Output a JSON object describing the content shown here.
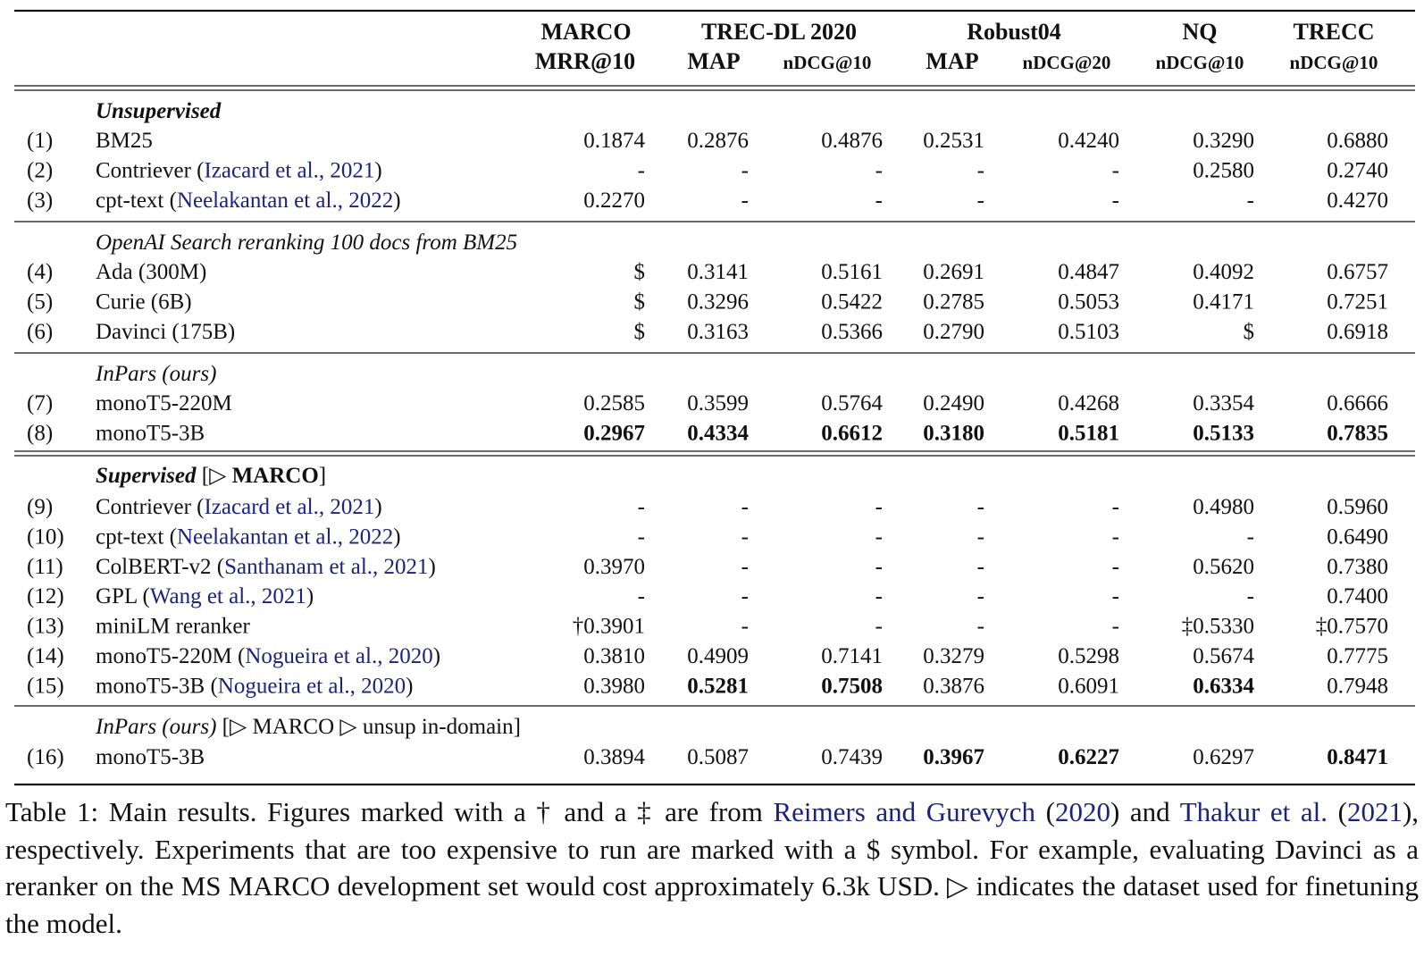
{
  "table": {
    "header_groups": [
      "MARCO",
      "TREC-DL 2020",
      "Robust04",
      "NQ",
      "TRECC"
    ],
    "metrics": [
      "MRR@10",
      "MAP",
      "nDCG@10",
      "MAP",
      "nDCG@20",
      "nDCG@10",
      "nDCG@10"
    ],
    "sections": [
      {
        "title": [
          {
            "t": "Unsupervised",
            "s": "bi"
          }
        ],
        "rows": [
          {
            "num": "(1)",
            "name": "BM25",
            "cite": "",
            "year": "",
            "values": [
              "0.1874",
              "0.2876",
              "0.4876",
              "0.2531",
              "0.4240",
              "0.3290",
              "0.6880"
            ],
            "bold": []
          },
          {
            "num": "(2)",
            "name": "Contriever (",
            "cite": "Izacard et al., 2021",
            "year": "",
            "close": ")",
            "values": [
              "-",
              "-",
              "-",
              "-",
              "-",
              "0.2580",
              "0.2740"
            ],
            "bold": []
          },
          {
            "num": "(3)",
            "name": "cpt-text (",
            "cite": "Neelakantan et al., 2022",
            "year": "",
            "close": ")",
            "values": [
              "0.2270",
              "-",
              "-",
              "-",
              "-",
              "-",
              "0.4270"
            ],
            "bold": []
          }
        ]
      },
      {
        "title": [
          {
            "t": "OpenAI Search reranking 100 docs from BM25",
            "s": "i"
          }
        ],
        "rows": [
          {
            "num": "(4)",
            "name": "Ada (300M)",
            "cite": "",
            "values": [
              "$",
              "0.3141",
              "0.5161",
              "0.2691",
              "0.4847",
              "0.4092",
              "0.6757"
            ],
            "bold": []
          },
          {
            "num": "(5)",
            "name": "Curie (6B)",
            "cite": "",
            "values": [
              "$",
              "0.3296",
              "0.5422",
              "0.2785",
              "0.5053",
              "0.4171",
              "0.7251"
            ],
            "bold": []
          },
          {
            "num": "(6)",
            "name": "Davinci (175B)",
            "cite": "",
            "values": [
              "$",
              "0.3163",
              "0.5366",
              "0.2790",
              "0.5103",
              "$",
              "0.6918"
            ],
            "bold": []
          }
        ]
      },
      {
        "title": [
          {
            "t": "InPars (ours)",
            "s": "i"
          }
        ],
        "rows": [
          {
            "num": "(7)",
            "name": "monoT5-220M",
            "cite": "",
            "values": [
              "0.2585",
              "0.3599",
              "0.5764",
              "0.2490",
              "0.4268",
              "0.3354",
              "0.6666"
            ],
            "bold": []
          },
          {
            "num": "(8)",
            "name": "monoT5-3B",
            "cite": "",
            "values": [
              "0.2967",
              "0.4334",
              "0.6612",
              "0.3180",
              "0.5181",
              "0.5133",
              "0.7835"
            ],
            "bold": [
              0,
              1,
              2,
              3,
              4,
              5,
              6
            ]
          }
        ]
      },
      {
        "title": [
          {
            "t": "Supervised",
            "s": "bi"
          },
          {
            "t": " [▷ ",
            "s": "n"
          },
          {
            "t": "MARCO",
            "s": "b"
          },
          {
            "t": "]",
            "s": "n"
          }
        ],
        "rows": [
          {
            "num": "(9)",
            "name": "Contriever (",
            "cite": "Izacard et al., 2021",
            "close": ")",
            "values": [
              "-",
              "-",
              "-",
              "-",
              "-",
              "0.4980",
              "0.5960"
            ],
            "bold": []
          },
          {
            "num": "(10)",
            "name": "cpt-text (",
            "cite": "Neelakantan et al., 2022",
            "close": ")",
            "values": [
              "-",
              "-",
              "-",
              "-",
              "-",
              "-",
              "0.6490"
            ],
            "bold": []
          },
          {
            "num": "(11)",
            "name": "ColBERT-v2 (",
            "cite": "Santhanam et al., 2021",
            "close": ")",
            "values": [
              "0.3970",
              "-",
              "-",
              "-",
              "-",
              "0.5620",
              "0.7380"
            ],
            "bold": []
          },
          {
            "num": "(12)",
            "name": "GPL (",
            "cite": "Wang et al., 2021",
            "close": ")",
            "values": [
              "-",
              "-",
              "-",
              "-",
              "-",
              "-",
              "0.7400"
            ],
            "bold": []
          },
          {
            "num": "(13)",
            "name": "miniLM reranker",
            "cite": "",
            "values": [
              "†0.3901",
              "-",
              "-",
              "-",
              "-",
              "‡0.5330",
              "‡0.7570"
            ],
            "bold": []
          },
          {
            "num": "(14)",
            "name": "monoT5-220M (",
            "cite": "Nogueira et al., 2020",
            "close": ")",
            "values": [
              "0.3810",
              "0.4909",
              "0.7141",
              "0.3279",
              "0.5298",
              "0.5674",
              "0.7775"
            ],
            "bold": []
          },
          {
            "num": "(15)",
            "name": "monoT5-3B (",
            "cite": "Nogueira et al., 2020",
            "close": ")",
            "values": [
              "0.3980",
              "0.5281",
              "0.7508",
              "0.3876",
              "0.6091",
              "0.6334",
              "0.7948"
            ],
            "bold": [
              1,
              2,
              5
            ]
          }
        ]
      },
      {
        "title": [
          {
            "t": "InPars (ours)",
            "s": "i"
          },
          {
            "t": " [▷ MARCO ▷ unsup in-domain]",
            "s": "n"
          }
        ],
        "rows": [
          {
            "num": "(16)",
            "name": "monoT5-3B",
            "cite": "",
            "values": [
              "0.3894",
              "0.5087",
              "0.7439",
              "0.3967",
              "0.6227",
              "0.6297",
              "0.8471"
            ],
            "bold": [
              3,
              4,
              6
            ]
          }
        ]
      }
    ]
  },
  "caption": {
    "p1": "Table 1: Main results. Figures marked with a † and a ‡ are from ",
    "c1": "Reimers and Gurevych",
    "p2": " (",
    "c2": "2020",
    "p3": ") and ",
    "c3": "Thakur et al.",
    "p4": " (",
    "c4": "2021",
    "p5": "), respectively. Experiments that are too expensive to run are marked with a $ symbol. For example, evaluating Davinci as a reranker on the MS MARCO development set would cost approximately 6.3k USD. ▷ indicates the dataset used for finetuning the model."
  },
  "colors": {
    "cite": "#1a237e",
    "text": "#111111"
  }
}
